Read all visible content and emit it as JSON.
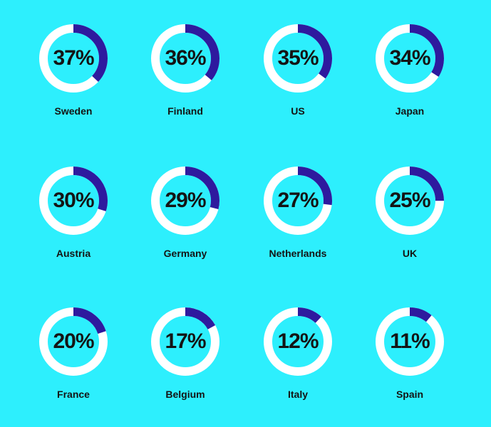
{
  "chart_data": {
    "type": "pie",
    "title": "",
    "categories": [
      "Sweden",
      "Finland",
      "US",
      "Japan",
      "Austria",
      "Germany",
      "Netherlands",
      "UK",
      "France",
      "Belgium",
      "Italy",
      "Spain"
    ],
    "values": [
      37,
      36,
      35,
      34,
      30,
      29,
      27,
      25,
      20,
      17,
      12,
      11
    ],
    "labels": [
      "37%",
      "36%",
      "35%",
      "34%",
      "30%",
      "29%",
      "27%",
      "25%",
      "20%",
      "17%",
      "12%",
      "11%"
    ],
    "unit": "%",
    "max": 100
  },
  "colors": {
    "background": "#2DEFFD",
    "ring": "#FFFFFF",
    "arc": "#2E1A9E",
    "text": "#141414"
  }
}
